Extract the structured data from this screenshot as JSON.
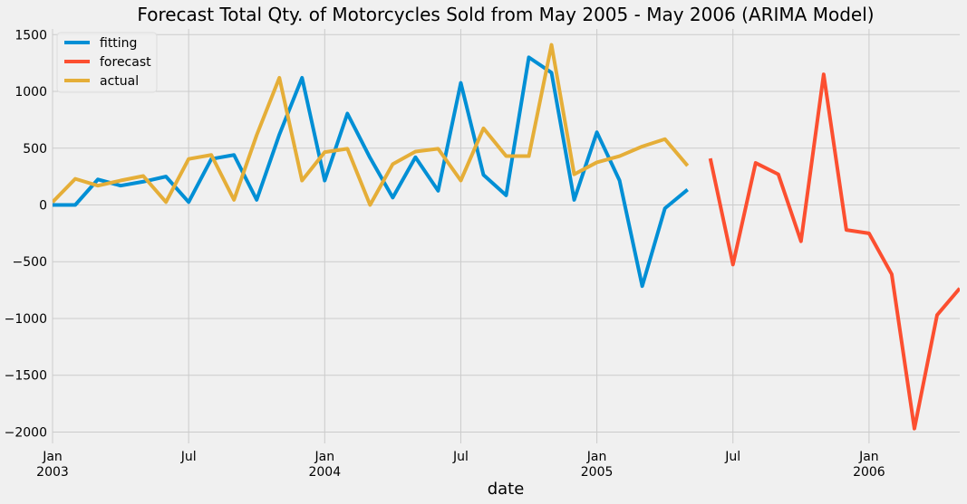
{
  "chart_data": {
    "type": "line",
    "title": "Forecast Total Qty. of Motorcycles Sold from May 2005 - May 2006 (ARIMA Model)",
    "xlabel": "date",
    "ylabel": "",
    "x_range": [
      "2003-01",
      "2006-05"
    ],
    "ylim": [
      -2100,
      1550
    ],
    "yticks": [
      1500,
      1000,
      500,
      0,
      -500,
      -1000,
      -1500,
      -2000
    ],
    "ytick_labels": [
      "1500",
      "1000",
      "500",
      "0",
      "−500",
      "−1000",
      "−1500",
      "−2000"
    ],
    "xticks": [
      {
        "date": "2003-01",
        "line1": "Jan",
        "line2": "2003"
      },
      {
        "date": "2003-07",
        "line1": "Jul",
        "line2": ""
      },
      {
        "date": "2004-01",
        "line1": "Jan",
        "line2": "2004"
      },
      {
        "date": "2004-07",
        "line1": "Jul",
        "line2": ""
      },
      {
        "date": "2005-01",
        "line1": "Jan",
        "line2": "2005"
      },
      {
        "date": "2005-07",
        "line1": "Jul",
        "line2": ""
      },
      {
        "date": "2006-01",
        "line1": "Jan",
        "line2": "2006"
      }
    ],
    "grid": true,
    "legend_position": "top-left",
    "series": [
      {
        "name": "fitting",
        "color": "#008fd5",
        "x": [
          "2003-01",
          "2003-02",
          "2003-03",
          "2003-04",
          "2003-05",
          "2003-06",
          "2003-07",
          "2003-08",
          "2003-09",
          "2003-10",
          "2003-11",
          "2003-12",
          "2004-01",
          "2004-02",
          "2004-03",
          "2004-04",
          "2004-05",
          "2004-06",
          "2004-07",
          "2004-08",
          "2004-09",
          "2004-10",
          "2004-11",
          "2004-12",
          "2005-01",
          "2005-02",
          "2005-03",
          "2005-04",
          "2005-05"
        ],
        "values": [
          0,
          0,
          225,
          170,
          205,
          250,
          25,
          405,
          440,
          45,
          620,
          1120,
          215,
          805,
          415,
          65,
          420,
          125,
          1075,
          265,
          85,
          1300,
          1165,
          45,
          640,
          215,
          -715,
          -30,
          135
        ]
      },
      {
        "name": "forecast",
        "color": "#fc4f30",
        "x": [
          "2005-06",
          "2005-07",
          "2005-08",
          "2005-09",
          "2005-10",
          "2005-11",
          "2005-12",
          "2006-01",
          "2006-02",
          "2006-03",
          "2006-04",
          "2006-05"
        ],
        "values": [
          410,
          -525,
          370,
          270,
          -320,
          1150,
          -220,
          -250,
          -610,
          -1970,
          -970,
          -735
        ]
      },
      {
        "name": "actual",
        "color": "#e5ae38",
        "x": [
          "2003-01",
          "2003-02",
          "2003-03",
          "2003-04",
          "2003-05",
          "2003-06",
          "2003-07",
          "2003-08",
          "2003-09",
          "2003-10",
          "2003-11",
          "2003-12",
          "2004-01",
          "2004-02",
          "2004-03",
          "2004-04",
          "2004-05",
          "2004-06",
          "2004-07",
          "2004-08",
          "2004-09",
          "2004-10",
          "2004-11",
          "2004-12",
          "2005-01",
          "2005-02",
          "2005-03",
          "2005-04",
          "2005-05"
        ],
        "values": [
          25,
          230,
          170,
          215,
          255,
          25,
          405,
          440,
          45,
          615,
          1120,
          215,
          465,
          495,
          0,
          360,
          470,
          495,
          215,
          675,
          430,
          430,
          1410,
          270,
          375,
          430,
          515,
          580,
          345
        ]
      }
    ]
  }
}
